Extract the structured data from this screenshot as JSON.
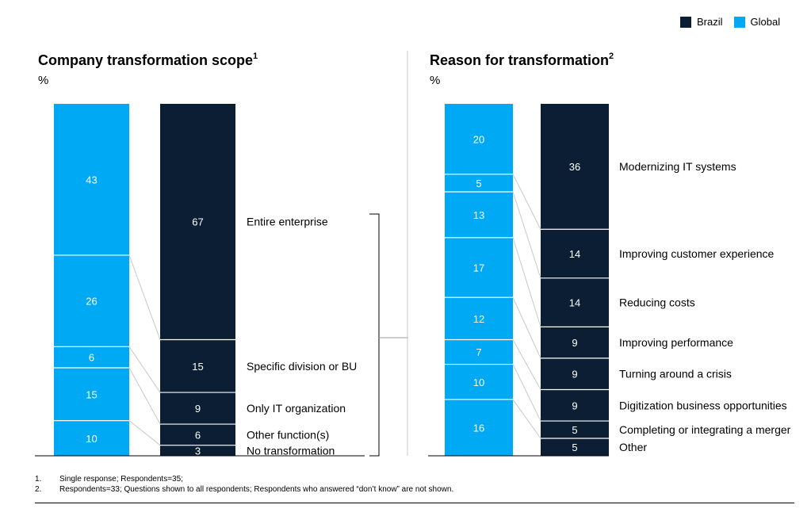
{
  "legend": [
    {
      "name": "Brazil",
      "color": "#0b1e33"
    },
    {
      "name": "Global",
      "color": "#00a9f4"
    }
  ],
  "panels": [
    {
      "title": "Company transformation scope",
      "sup": "1",
      "unit": "%"
    },
    {
      "title": "Reason for transformation",
      "sup": "2",
      "unit": "%"
    }
  ],
  "footnotes": [
    {
      "num": "1.",
      "text": "Single response; Respondents=35;"
    },
    {
      "num": "2.",
      "text": "Respondents=33; Questions shown to all respondents; Respondents who answered “don’t know” are not shown."
    }
  ],
  "chart_data": [
    {
      "type": "bar",
      "stacked": true,
      "title": "Company transformation scope",
      "ylabel": "%",
      "categories": [
        "Entire enterprise",
        "Specific division or BU",
        "Only IT organization",
        "Other function(s)",
        "No transformation"
      ],
      "series": [
        {
          "name": "Global",
          "color": "#00a9f4",
          "values": [
            43,
            26,
            6,
            15,
            10
          ]
        },
        {
          "name": "Brazil",
          "color": "#0b1e33",
          "values": [
            67,
            15,
            9,
            6,
            3
          ]
        }
      ],
      "bracket": true
    },
    {
      "type": "bar",
      "stacked": true,
      "title": "Reason for transformation",
      "ylabel": "%",
      "categories": [
        "Modernizing IT systems",
        "Improving customer experience",
        "Reducing costs",
        "Improving performance",
        "Turning around a crisis",
        "Digitization business opportunities",
        "Completing or integrating a merger",
        "Other"
      ],
      "series": [
        {
          "name": "Global",
          "color": "#00a9f4",
          "values": [
            20,
            5,
            13,
            17,
            12,
            7,
            10,
            16
          ]
        },
        {
          "name": "Brazil",
          "color": "#0b1e33",
          "values": [
            36,
            14,
            14,
            9,
            9,
            9,
            5,
            5
          ]
        }
      ]
    }
  ]
}
